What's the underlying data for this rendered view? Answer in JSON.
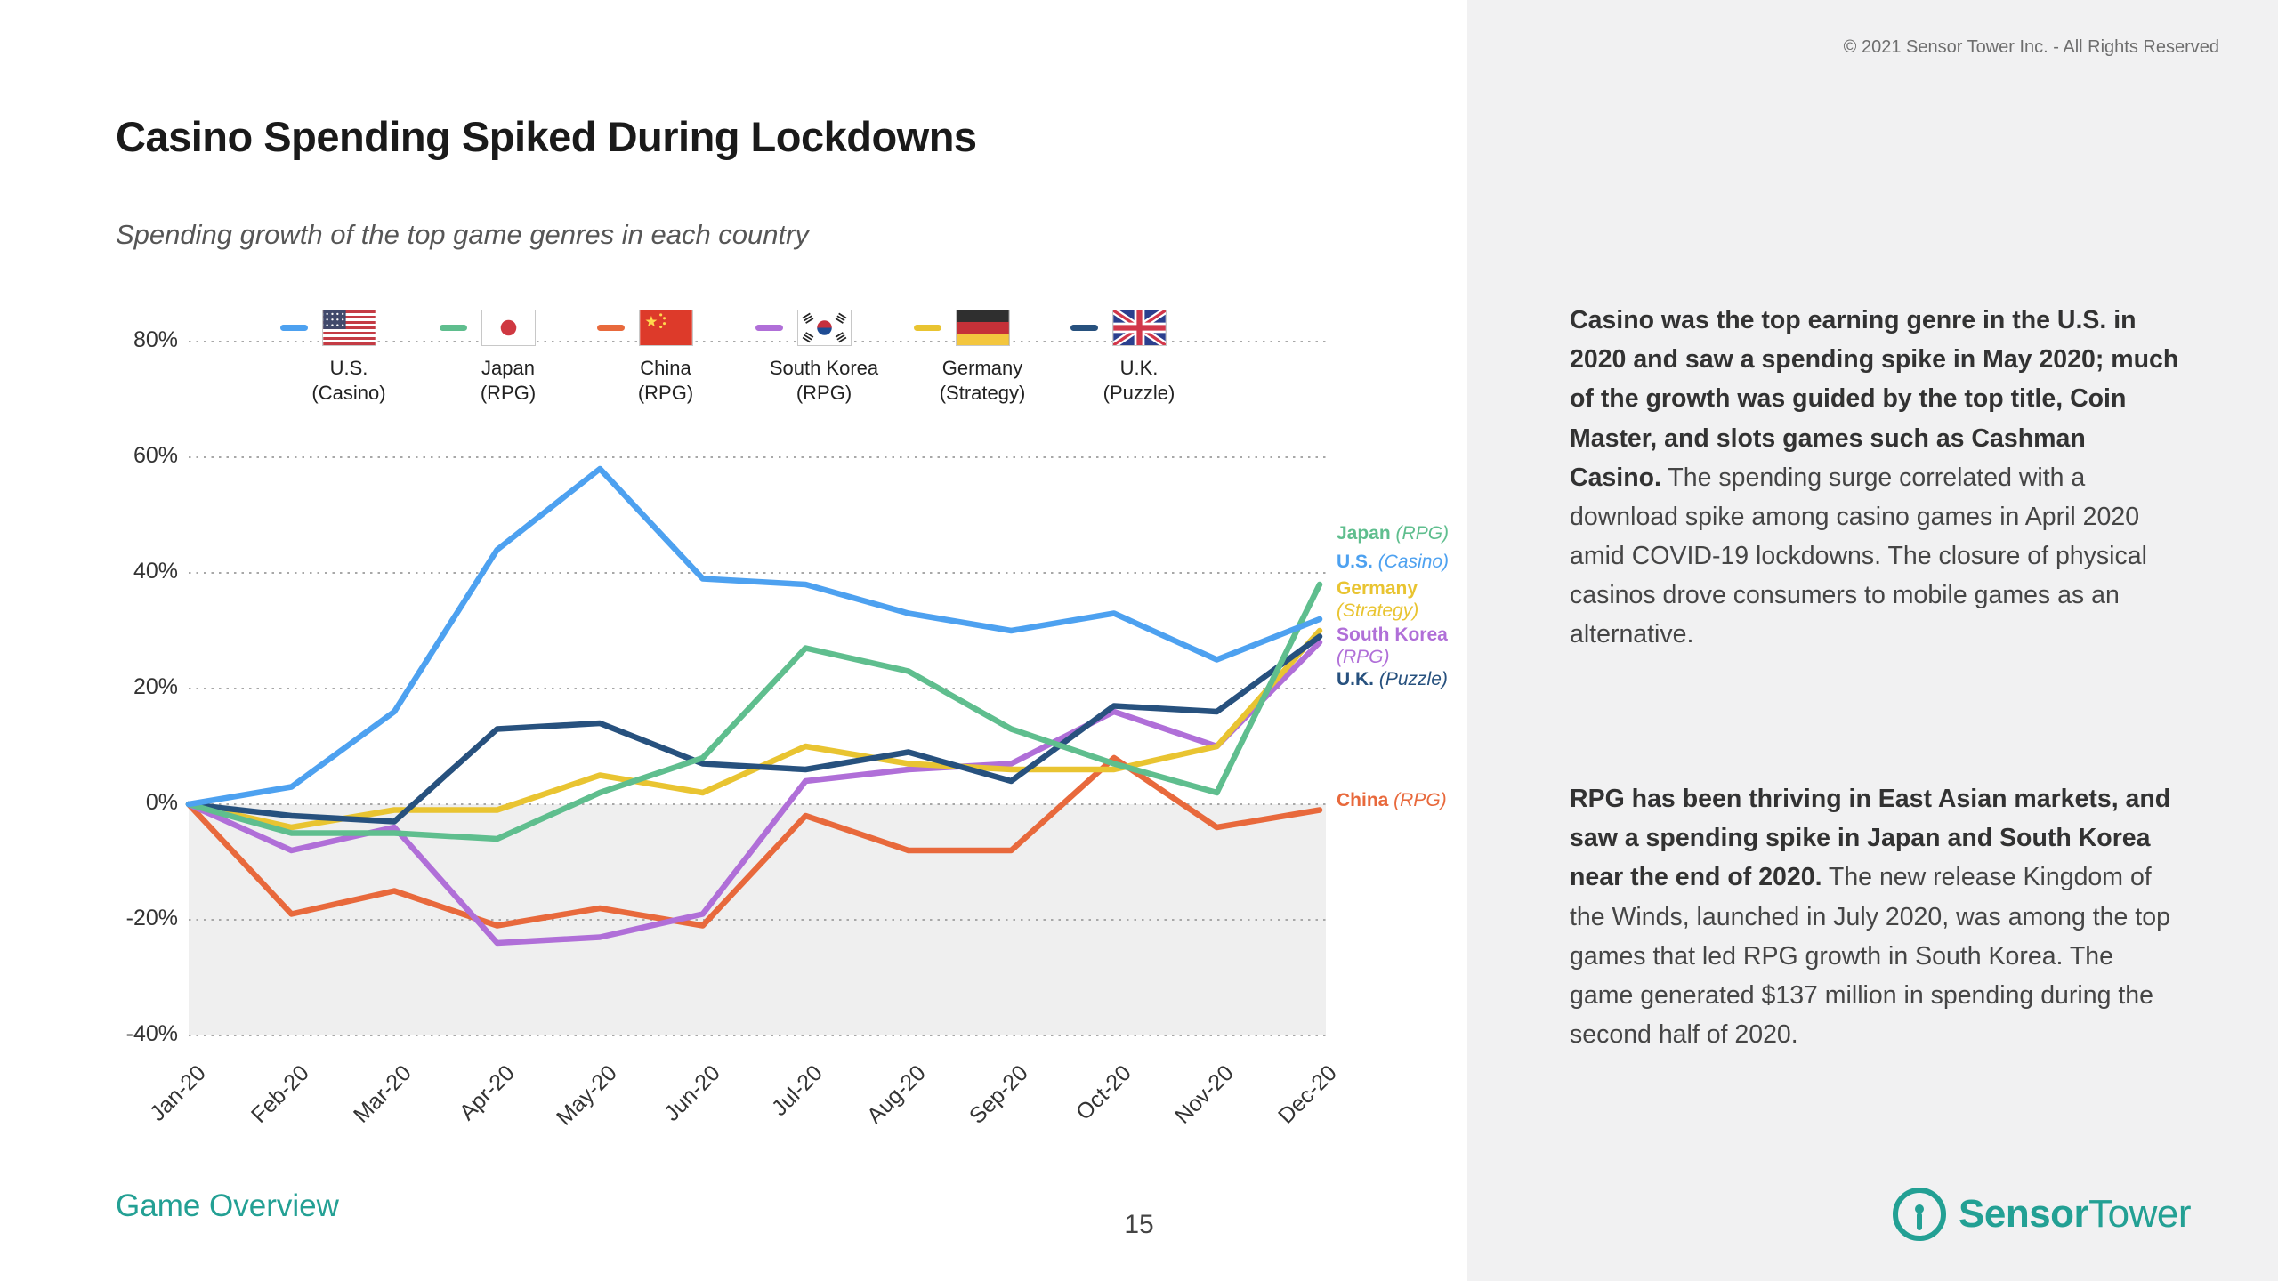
{
  "header": {
    "copyright": "© 2021 Sensor Tower Inc. - All Rights Reserved"
  },
  "slide": {
    "title": "Casino Spending Spiked During Lockdowns",
    "subtitle": "Spending growth of the top game genres in each country",
    "section_label": "Game Overview",
    "page_number": "15"
  },
  "brand": {
    "logo_text_bold": "Sensor",
    "logo_text_regular": "Tower",
    "color": "#23a094"
  },
  "chart_data": {
    "type": "line",
    "title": "Spending growth of the top game genres in each country",
    "x": [
      "Jan-20",
      "Feb-20",
      "Mar-20",
      "Apr-20",
      "May-20",
      "Jun-20",
      "Jul-20",
      "Aug-20",
      "Sep-20",
      "Oct-20",
      "Nov-20",
      "Dec-20"
    ],
    "xlabel": "",
    "ylabel": "",
    "ylim": [
      -40,
      80
    ],
    "yticks": [
      80,
      60,
      40,
      20,
      0,
      -20,
      -40
    ],
    "ytick_suffix": "%",
    "grid": "dotted-horizontal",
    "negative_region_shaded": true,
    "legend_position": "top",
    "series": [
      {
        "name": "U.S.",
        "genre": "Casino",
        "flag": "us-flag-icon",
        "color": "#4da1f0",
        "values": [
          0,
          3,
          16,
          44,
          58,
          39,
          38,
          33,
          30,
          33,
          25,
          32
        ]
      },
      {
        "name": "Japan",
        "genre": "RPG",
        "flag": "japan-flag-icon",
        "color": "#5fbe8e",
        "values": [
          0,
          -5,
          -5,
          -6,
          2,
          8,
          27,
          23,
          13,
          7,
          2,
          38
        ]
      },
      {
        "name": "China",
        "genre": "RPG",
        "flag": "china-flag-icon",
        "color": "#e8693c",
        "values": [
          0,
          -19,
          -15,
          -21,
          -18,
          -21,
          -2,
          -8,
          -8,
          8,
          -4,
          -1
        ]
      },
      {
        "name": "South Korea",
        "genre": "RPG",
        "flag": "south-korea-flag-icon",
        "color": "#b06fd8",
        "values": [
          0,
          -8,
          -4,
          -24,
          -23,
          -19,
          4,
          6,
          7,
          16,
          10,
          28
        ]
      },
      {
        "name": "Germany",
        "genre": "Strategy",
        "flag": "germany-flag-icon",
        "color": "#e9c431",
        "values": [
          0,
          -4,
          -1,
          -1,
          5,
          2,
          10,
          7,
          6,
          6,
          10,
          30
        ]
      },
      {
        "name": "U.K.",
        "genre": "Puzzle",
        "flag": "uk-flag-icon",
        "color": "#27517e",
        "values": [
          0,
          -2,
          -3,
          13,
          14,
          7,
          6,
          9,
          4,
          17,
          16,
          29
        ]
      }
    ]
  },
  "commentary": [
    {
      "bold": "Casino was the top earning genre in the U.S. in 2020 and saw a spending spike in May 2020; much of the growth was guided by the top title, Coin Master, and slots games such as Cashman Casino.",
      "regular": "The spending surge correlated with a download spike among casino games in April 2020 amid COVID-19 lockdowns. The closure of physical casinos drove consumers to mobile games as an alternative."
    },
    {
      "bold": "RPG has been thriving in East Asian markets, and saw a spending spike in Japan and South Korea near the end of 2020.",
      "regular": "The new release Kingdom of the Winds, launched in July 2020, was among the top games that led RPG growth in South Korea. The game generated $137 million in spending during the second half of 2020."
    }
  ]
}
